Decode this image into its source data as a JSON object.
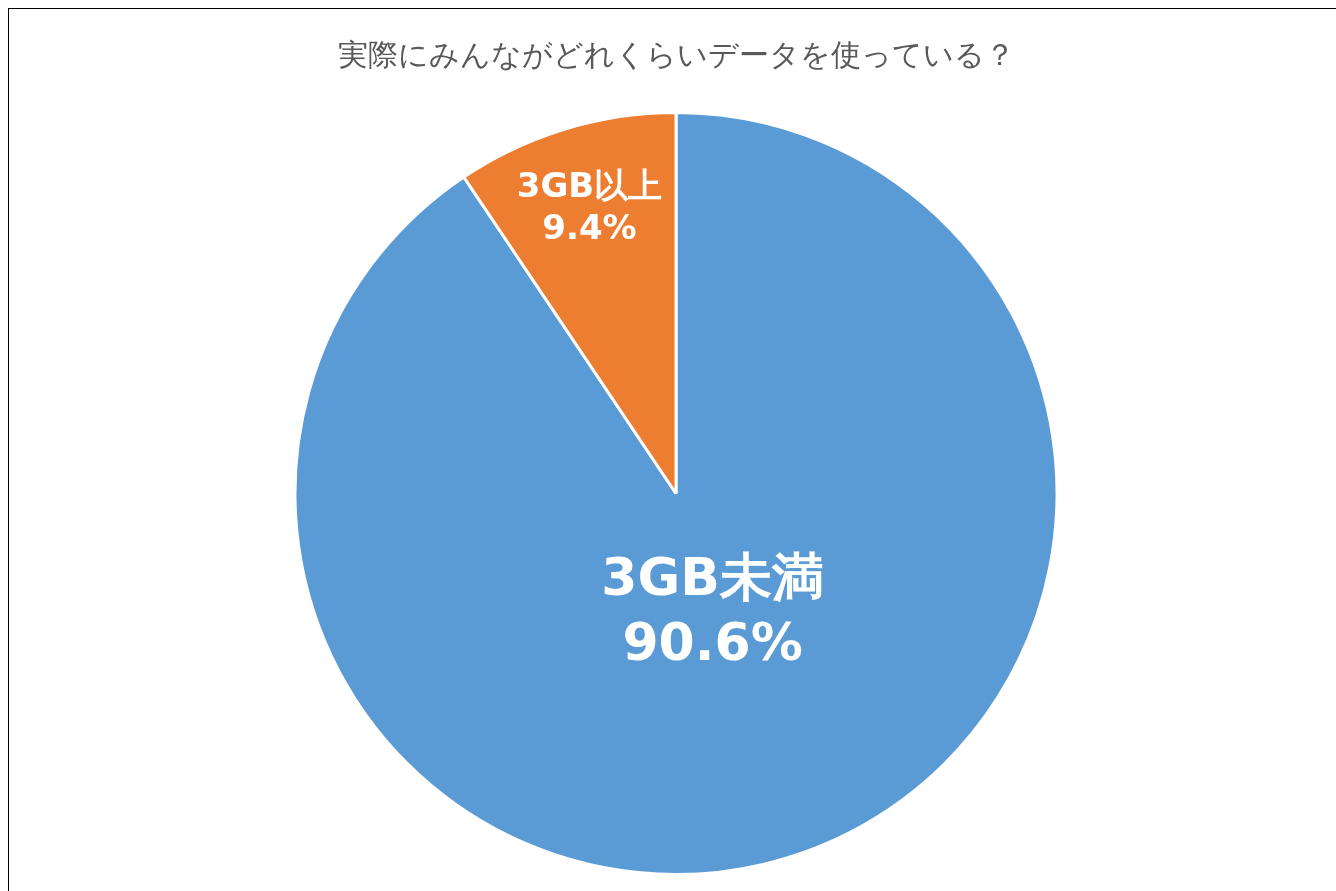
{
  "chart_data": {
    "type": "pie",
    "title": "実際にみんながどれくらいデータを使っている？",
    "categories": [
      "3GB未満",
      "3GB以上"
    ],
    "values": [
      90.6,
      9.4
    ],
    "colors": [
      "#5b9bd5",
      "#ed7d31"
    ],
    "value_labels": [
      "90.6%",
      "9.4%"
    ],
    "legend": false
  }
}
